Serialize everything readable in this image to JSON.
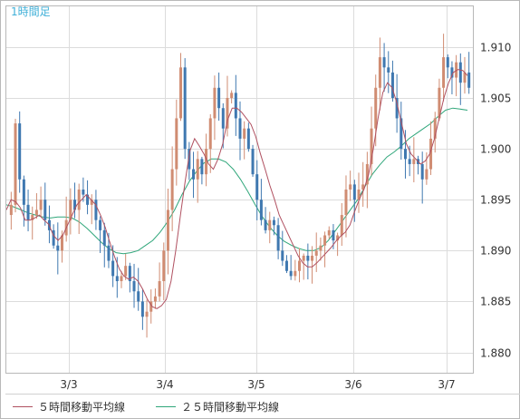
{
  "chart_data": {
    "type": "candlestick",
    "title": "1時間足",
    "ylim": [
      1.878,
      1.914
    ],
    "yticks": [
      "1.880",
      "1.885",
      "1.890",
      "1.895",
      "1.900",
      "1.905",
      "1.910"
    ],
    "xticks": [
      "3/3",
      "3/4",
      "3/5",
      "3/6",
      "3/7"
    ],
    "grid": true,
    "colors": {
      "up": "#d08c72",
      "down": "#3f78b0",
      "ma5": "#b05060",
      "ma25": "#2fa67a",
      "grid": "#dcdcdc",
      "title": "#40b0d8"
    },
    "legend": [
      {
        "label": "５時間移動平均線",
        "color": "#b05060"
      },
      {
        "label": "２５時間移動平均線",
        "color": "#2fa67a"
      }
    ],
    "closes": [
      1.8945,
      1.9025,
      1.897,
      1.8945,
      1.893,
      1.8935,
      1.894,
      1.895,
      1.893,
      1.892,
      1.8905,
      1.89,
      1.8915,
      1.893,
      1.895,
      1.894,
      1.896,
      1.8955,
      1.8945,
      1.895,
      1.893,
      1.892,
      1.8905,
      1.889,
      1.8875,
      1.887,
      1.8875,
      1.8885,
      1.887,
      1.886,
      1.885,
      1.8835,
      1.884,
      1.885,
      1.8855,
      1.887,
      1.89,
      1.894,
      1.898,
      1.903,
      1.908,
      1.9,
      1.898,
      1.897,
      1.899,
      1.8975,
      1.9,
      1.903,
      1.906,
      1.904,
      1.902,
      1.905,
      1.9055,
      1.903,
      1.901,
      1.902,
      1.9,
      1.8975,
      1.895,
      1.893,
      1.892,
      1.893,
      1.8925,
      1.89,
      1.889,
      1.888,
      1.8875,
      1.888,
      1.889,
      1.8895,
      1.889,
      1.8895,
      1.89,
      1.8905,
      1.8915,
      1.892,
      1.891,
      1.8915,
      1.8935,
      1.896,
      1.8965,
      1.895,
      1.896,
      1.8965,
      1.8985,
      1.902,
      1.906,
      1.909,
      1.908,
      1.9075,
      1.905,
      1.903,
      1.9,
      1.899,
      1.8985,
      1.899,
      1.8985,
      1.897,
      1.898,
      1.901,
      1.903,
      1.906,
      1.909,
      1.908,
      1.907,
      1.9085,
      1.9065,
      1.9075,
      1.906
    ],
    "ma5": [
      1.894,
      1.895,
      1.8948,
      1.8942,
      1.893,
      1.893,
      1.8932,
      1.8935,
      1.893,
      1.8926,
      1.8915,
      1.891,
      1.8915,
      1.8925,
      1.8935,
      1.8945,
      1.895,
      1.8955,
      1.895,
      1.8945,
      1.8935,
      1.8923,
      1.8908,
      1.8894,
      1.8882,
      1.8875,
      1.8872,
      1.8874,
      1.887,
      1.8862,
      1.8852,
      1.8845,
      1.8843,
      1.8846,
      1.8852,
      1.887,
      1.89,
      1.8935,
      1.8968,
      1.8998,
      1.901,
      1.9003,
      1.8995,
      1.8985,
      1.898,
      1.899,
      1.9005,
      1.9028,
      1.904,
      1.904,
      1.9036,
      1.903,
      1.9024,
      1.9012,
      1.8995,
      1.898,
      1.8964,
      1.895,
      1.8935,
      1.8925,
      1.8915,
      1.8905,
      1.8895,
      1.8888,
      1.8884,
      1.8884,
      1.8888,
      1.8893,
      1.8898,
      1.8903,
      1.8909,
      1.8914,
      1.8918,
      1.8925,
      1.8938,
      1.895,
      1.896,
      1.8975,
      1.9,
      1.903,
      1.9055,
      1.9065,
      1.906,
      1.9045,
      1.9025,
      1.9005,
      1.8995,
      1.899,
      1.8985,
      1.8988,
      1.8995,
      1.901,
      1.903,
      1.905,
      1.9065,
      1.9075,
      1.9078,
      1.9077,
      1.9072
    ],
    "ma25": [
      1.8945,
      1.8943,
      1.894,
      1.8937,
      1.8935,
      1.8933,
      1.8932,
      1.8933,
      1.8933,
      1.8932,
      1.8928,
      1.8922,
      1.8915,
      1.8908,
      1.8902,
      1.8898,
      1.8897,
      1.8898,
      1.89,
      1.8905,
      1.891,
      1.8918,
      1.8928,
      1.894,
      1.8955,
      1.8968,
      1.8978,
      1.8986,
      1.899,
      1.899,
      1.8987,
      1.898,
      1.897,
      1.8958,
      1.8945,
      1.8933,
      1.8923,
      1.8915,
      1.8909,
      1.8905,
      1.8902,
      1.89,
      1.89,
      1.8903,
      1.891,
      1.892,
      1.893,
      1.894,
      1.895,
      1.8963,
      1.8975,
      1.8984,
      1.8992,
      1.8997,
      1.9003,
      1.901,
      1.9015,
      1.902,
      1.9025,
      1.9032,
      1.9038,
      1.904,
      1.9039,
      1.9038
    ]
  }
}
